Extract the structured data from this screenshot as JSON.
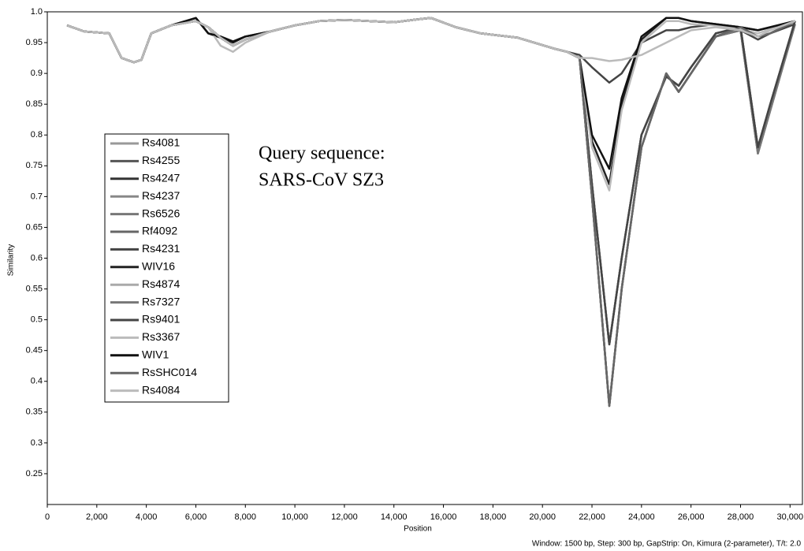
{
  "chart_data": {
    "type": "line",
    "y_label": "Similarity",
    "x_label": "Position",
    "annotation": [
      "Query sequence:",
      "SARS-CoV SZ3"
    ],
    "footer": "Window: 1500 bp, Step: 300 bp, GapStrip: On, Kimura (2-parameter), T/t: 2.0",
    "xlim": [
      0,
      30500
    ],
    "ylim": [
      0.2,
      1.0
    ],
    "xticks": [
      0,
      {
        "value": 2000,
        "label": "2,000"
      },
      {
        "value": 4000,
        "label": "4,000"
      },
      {
        "value": 6000,
        "label": "6,000"
      },
      {
        "value": 8000,
        "label": "8,000"
      },
      {
        "value": 10000,
        "label": "10,000"
      },
      {
        "value": 12000,
        "label": "12,000"
      },
      {
        "value": 14000,
        "label": "14,000"
      },
      {
        "value": 16000,
        "label": "16,000"
      },
      {
        "value": 18000,
        "label": "18,000"
      },
      {
        "value": 20000,
        "label": "20,000"
      },
      {
        "value": 22000,
        "label": "22,000"
      },
      {
        "value": 24000,
        "label": "24,000"
      },
      {
        "value": 26000,
        "label": "26,000"
      },
      {
        "value": 28000,
        "label": "28,000"
      },
      {
        "value": 30000,
        "label": "30,000"
      }
    ],
    "yticks": [
      0.25,
      0.3,
      0.35,
      0.4,
      0.45,
      0.5,
      0.55,
      0.6,
      0.65,
      0.7,
      0.75,
      0.8,
      0.85,
      0.9,
      0.95,
      {
        "value": 1,
        "label": "1.0"
      }
    ],
    "grid": false,
    "legend": "left",
    "x": [
      800,
      1500,
      2500,
      3000,
      3500,
      3800,
      4200,
      5000,
      6000,
      6500,
      7000,
      7500,
      8000,
      9000,
      10000,
      11000,
      12000,
      13000,
      14000,
      15000,
      15500,
      16500,
      17500,
      19000,
      20500,
      21000,
      21500,
      22000,
      22700,
      23200,
      24000,
      25000,
      25500,
      26000,
      27000,
      28000,
      28700,
      29200,
      30200
    ],
    "series": [
      {
        "name": "Rs4081",
        "color": "#999999",
        "values": [
          0.978,
          0.968,
          0.965,
          0.925,
          0.918,
          0.922,
          0.965,
          0.978,
          0.985,
          0.975,
          0.958,
          0.945,
          0.955,
          0.968,
          0.978,
          0.985,
          0.987,
          0.985,
          0.983,
          0.988,
          0.99,
          0.975,
          0.965,
          0.958,
          0.94,
          0.935,
          0.925,
          0.72,
          0.46,
          0.6,
          0.8,
          0.895,
          0.88,
          0.91,
          0.965,
          0.975,
          0.96,
          0.965,
          0.985
        ]
      },
      {
        "name": "Rs4255",
        "color": "#555555",
        "values": [
          0.978,
          0.968,
          0.965,
          0.925,
          0.918,
          0.922,
          0.965,
          0.978,
          0.985,
          0.975,
          0.958,
          0.945,
          0.955,
          0.968,
          0.978,
          0.985,
          0.987,
          0.985,
          0.983,
          0.988,
          0.99,
          0.975,
          0.965,
          0.958,
          0.94,
          0.935,
          0.925,
          0.7,
          0.36,
          0.55,
          0.78,
          0.9,
          0.87,
          0.9,
          0.96,
          0.97,
          0.77,
          0.84,
          0.98
        ]
      },
      {
        "name": "Rs4247",
        "color": "#333333",
        "values": [
          0.978,
          0.968,
          0.965,
          0.925,
          0.918,
          0.922,
          0.965,
          0.978,
          0.985,
          0.975,
          0.958,
          0.945,
          0.955,
          0.968,
          0.978,
          0.985,
          0.987,
          0.985,
          0.983,
          0.988,
          0.99,
          0.975,
          0.965,
          0.958,
          0.94,
          0.935,
          0.925,
          0.72,
          0.46,
          0.6,
          0.8,
          0.895,
          0.88,
          0.91,
          0.965,
          0.975,
          0.78,
          0.85,
          0.985
        ]
      },
      {
        "name": "Rs4237",
        "color": "#888888",
        "values": [
          0.978,
          0.968,
          0.965,
          0.925,
          0.918,
          0.922,
          0.965,
          0.978,
          0.985,
          0.975,
          0.958,
          0.945,
          0.955,
          0.968,
          0.978,
          0.985,
          0.987,
          0.985,
          0.983,
          0.988,
          0.99,
          0.975,
          0.965,
          0.958,
          0.94,
          0.935,
          0.925,
          0.7,
          0.36,
          0.55,
          0.78,
          0.9,
          0.87,
          0.9,
          0.96,
          0.97,
          0.77,
          0.84,
          0.98
        ]
      },
      {
        "name": "Rs6526",
        "color": "#777777",
        "values": [
          0.978,
          0.968,
          0.965,
          0.925,
          0.918,
          0.922,
          0.965,
          0.978,
          0.985,
          0.975,
          0.958,
          0.945,
          0.955,
          0.968,
          0.978,
          0.985,
          0.987,
          0.985,
          0.983,
          0.988,
          0.99,
          0.975,
          0.965,
          0.958,
          0.94,
          0.935,
          0.925,
          0.72,
          0.46,
          0.6,
          0.8,
          0.895,
          0.88,
          0.91,
          0.965,
          0.975,
          0.78,
          0.85,
          0.985
        ]
      },
      {
        "name": "Rf4092",
        "color": "#666666",
        "values": [
          0.978,
          0.968,
          0.965,
          0.925,
          0.918,
          0.922,
          0.965,
          0.978,
          0.985,
          0.975,
          0.958,
          0.945,
          0.955,
          0.968,
          0.978,
          0.985,
          0.987,
          0.985,
          0.983,
          0.988,
          0.99,
          0.975,
          0.965,
          0.958,
          0.94,
          0.935,
          0.925,
          0.7,
          0.36,
          0.55,
          0.78,
          0.9,
          0.87,
          0.9,
          0.96,
          0.975,
          0.96,
          0.965,
          0.985
        ]
      },
      {
        "name": "Rs4231",
        "color": "#444444",
        "values": [
          0.978,
          0.968,
          0.965,
          0.925,
          0.918,
          0.922,
          0.965,
          0.978,
          0.985,
          0.975,
          0.958,
          0.945,
          0.955,
          0.968,
          0.978,
          0.985,
          0.987,
          0.985,
          0.983,
          0.988,
          0.99,
          0.975,
          0.965,
          0.958,
          0.94,
          0.935,
          0.93,
          0.91,
          0.885,
          0.9,
          0.95,
          0.97,
          0.97,
          0.975,
          0.98,
          0.97,
          0.955,
          0.965,
          0.98
        ]
      },
      {
        "name": "WIV16",
        "color": "#222222",
        "values": [
          0.978,
          0.968,
          0.965,
          0.925,
          0.918,
          0.922,
          0.965,
          0.978,
          0.99,
          0.965,
          0.958,
          0.95,
          0.96,
          0.968,
          0.978,
          0.985,
          0.987,
          0.985,
          0.983,
          0.988,
          0.99,
          0.975,
          0.965,
          0.958,
          0.94,
          0.935,
          0.925,
          0.79,
          0.72,
          0.85,
          0.955,
          0.99,
          0.99,
          0.985,
          0.98,
          0.975,
          0.97,
          0.975,
          0.985
        ]
      },
      {
        "name": "Rs4874",
        "color": "#aaaaaa",
        "values": [
          0.978,
          0.968,
          0.965,
          0.925,
          0.918,
          0.922,
          0.965,
          0.978,
          0.985,
          0.975,
          0.958,
          0.945,
          0.955,
          0.968,
          0.978,
          0.985,
          0.987,
          0.985,
          0.983,
          0.988,
          0.99,
          0.975,
          0.965,
          0.958,
          0.94,
          0.935,
          0.925,
          0.72,
          0.46,
          0.6,
          0.8,
          0.895,
          0.88,
          0.91,
          0.965,
          0.975,
          0.96,
          0.965,
          0.985
        ]
      },
      {
        "name": "Rs7327",
        "color": "#777777",
        "values": [
          0.978,
          0.968,
          0.965,
          0.925,
          0.918,
          0.922,
          0.965,
          0.978,
          0.985,
          0.975,
          0.958,
          0.945,
          0.955,
          0.968,
          0.978,
          0.985,
          0.987,
          0.985,
          0.983,
          0.988,
          0.99,
          0.975,
          0.965,
          0.958,
          0.94,
          0.935,
          0.925,
          0.7,
          0.36,
          0.55,
          0.78,
          0.9,
          0.87,
          0.9,
          0.96,
          0.97,
          0.77,
          0.84,
          0.98
        ]
      },
      {
        "name": "Rs9401",
        "color": "#444444",
        "values": [
          0.978,
          0.968,
          0.965,
          0.925,
          0.918,
          0.922,
          0.965,
          0.978,
          0.985,
          0.975,
          0.958,
          0.945,
          0.955,
          0.968,
          0.978,
          0.985,
          0.987,
          0.985,
          0.983,
          0.988,
          0.99,
          0.975,
          0.965,
          0.958,
          0.94,
          0.935,
          0.925,
          0.72,
          0.46,
          0.6,
          0.8,
          0.895,
          0.88,
          0.91,
          0.965,
          0.975,
          0.78,
          0.85,
          0.985
        ]
      },
      {
        "name": "Rs3367",
        "color": "#bbbbbb",
        "values": [
          0.978,
          0.968,
          0.965,
          0.925,
          0.918,
          0.922,
          0.965,
          0.978,
          0.985,
          0.975,
          0.945,
          0.935,
          0.95,
          0.968,
          0.978,
          0.985,
          0.987,
          0.985,
          0.983,
          0.988,
          0.99,
          0.975,
          0.965,
          0.958,
          0.94,
          0.935,
          0.925,
          0.78,
          0.71,
          0.84,
          0.95,
          0.985,
          0.985,
          0.98,
          0.978,
          0.972,
          0.965,
          0.972,
          0.985
        ]
      },
      {
        "name": "WIV1",
        "color": "#111111",
        "values": [
          0.978,
          0.968,
          0.965,
          0.925,
          0.918,
          0.922,
          0.965,
          0.978,
          0.99,
          0.965,
          0.96,
          0.952,
          0.96,
          0.968,
          0.978,
          0.985,
          0.987,
          0.985,
          0.983,
          0.988,
          0.99,
          0.975,
          0.965,
          0.958,
          0.94,
          0.935,
          0.925,
          0.8,
          0.745,
          0.86,
          0.96,
          0.99,
          0.99,
          0.985,
          0.98,
          0.975,
          0.97,
          0.975,
          0.985
        ]
      },
      {
        "name": "RsSHC014",
        "color": "#666666",
        "values": [
          0.978,
          0.968,
          0.965,
          0.925,
          0.918,
          0.922,
          0.965,
          0.978,
          0.985,
          0.975,
          0.958,
          0.945,
          0.955,
          0.968,
          0.978,
          0.985,
          0.987,
          0.985,
          0.983,
          0.988,
          0.99,
          0.975,
          0.965,
          0.958,
          0.94,
          0.935,
          0.925,
          0.7,
          0.36,
          0.55,
          0.78,
          0.9,
          0.87,
          0.9,
          0.96,
          0.975,
          0.96,
          0.965,
          0.985
        ]
      },
      {
        "name": "Rs4084",
        "color": "#bbbbbb",
        "values": [
          0.978,
          0.968,
          0.965,
          0.925,
          0.918,
          0.922,
          0.965,
          0.978,
          0.985,
          0.975,
          0.958,
          0.945,
          0.955,
          0.968,
          0.978,
          0.985,
          0.987,
          0.985,
          0.983,
          0.988,
          0.99,
          0.975,
          0.965,
          0.958,
          0.94,
          0.935,
          0.925,
          0.925,
          0.92,
          0.922,
          0.93,
          0.95,
          0.96,
          0.97,
          0.975,
          0.97,
          0.96,
          0.97,
          0.985
        ]
      }
    ]
  }
}
